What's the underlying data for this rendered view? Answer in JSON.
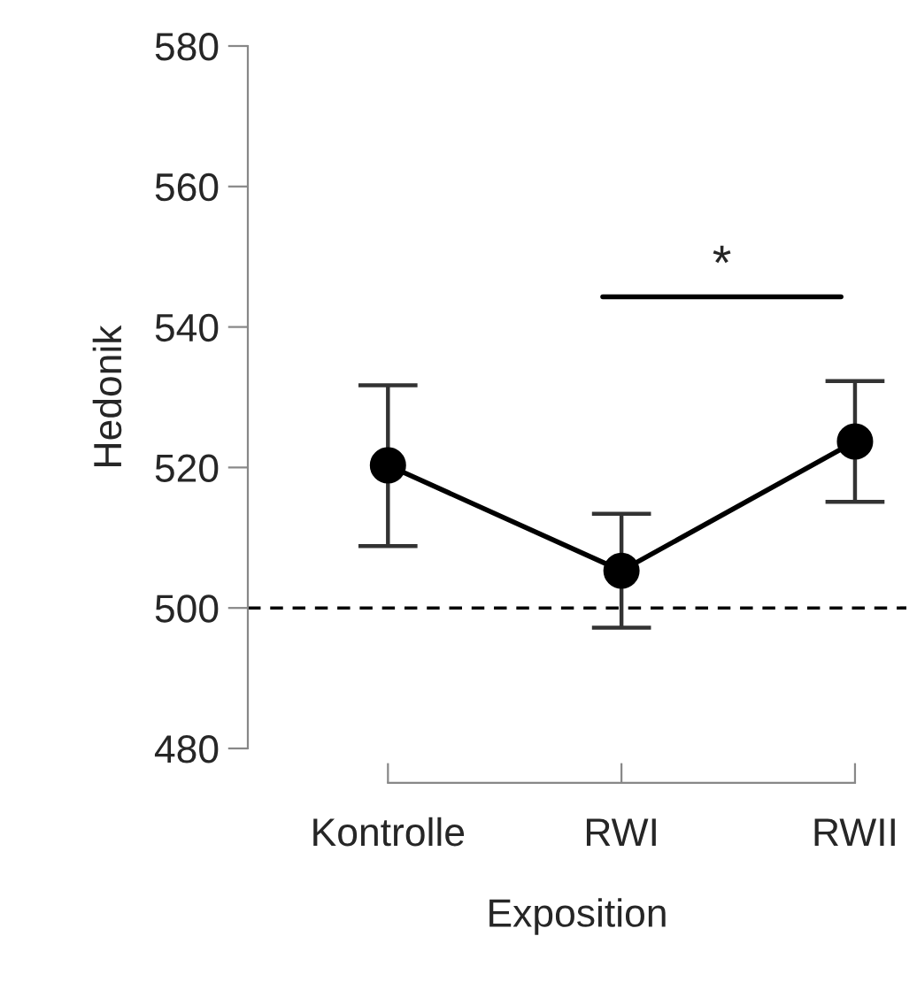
{
  "chart_data": {
    "type": "line",
    "xlabel": "Exposition",
    "ylabel": "Hedonik",
    "categories": [
      "Kontrolle",
      "RWI",
      "RWII"
    ],
    "series": [
      {
        "color": "#000000",
        "values": [
          520.3,
          505.3,
          523.7
        ],
        "errors": [
          [
            508.8,
            531.7
          ],
          [
            497.2,
            513.4
          ],
          [
            515.1,
            532.3
          ]
        ]
      }
    ],
    "ylim": [
      480,
      580
    ],
    "yticks": [
      480,
      500,
      520,
      540,
      560,
      580
    ],
    "ref_lines": [
      {
        "axis": "y",
        "value": 500,
        "color": "#000000",
        "line_style": "dashed"
      }
    ],
    "annotations": [
      "*"
    ],
    "marker": "circle",
    "line_style": "solid",
    "grid": false,
    "legend": false
  }
}
